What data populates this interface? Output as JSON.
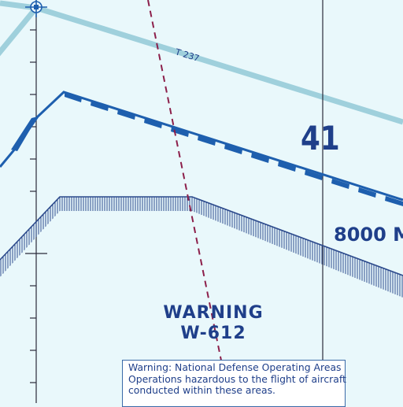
{
  "map": {
    "background_color": "#e9f8fb",
    "airway": {
      "label": "T 237",
      "color": "#9fd0dc"
    },
    "grid_number": {
      "value": "41",
      "color": "#1f3f8a"
    },
    "altitude_label": {
      "text": "8000 M",
      "color": "#1f3f8a"
    },
    "warning_area": {
      "title": "WARNING",
      "designator": "W-612",
      "color": "#1f3f8a"
    },
    "notice_box": {
      "lines": [
        "Warning: National Defense Operating Areas",
        "Operations hazardous to the flight of aircraft",
        "conducted within these areas."
      ]
    },
    "colors": {
      "boundary_blue": "#1e5fae",
      "warning_hatch": "#2c4a8c",
      "route_dashed": "#8c1f4a",
      "lat_long_line": "#2a2a3a"
    },
    "icons": [
      "navaid-symbol-icon"
    ]
  }
}
